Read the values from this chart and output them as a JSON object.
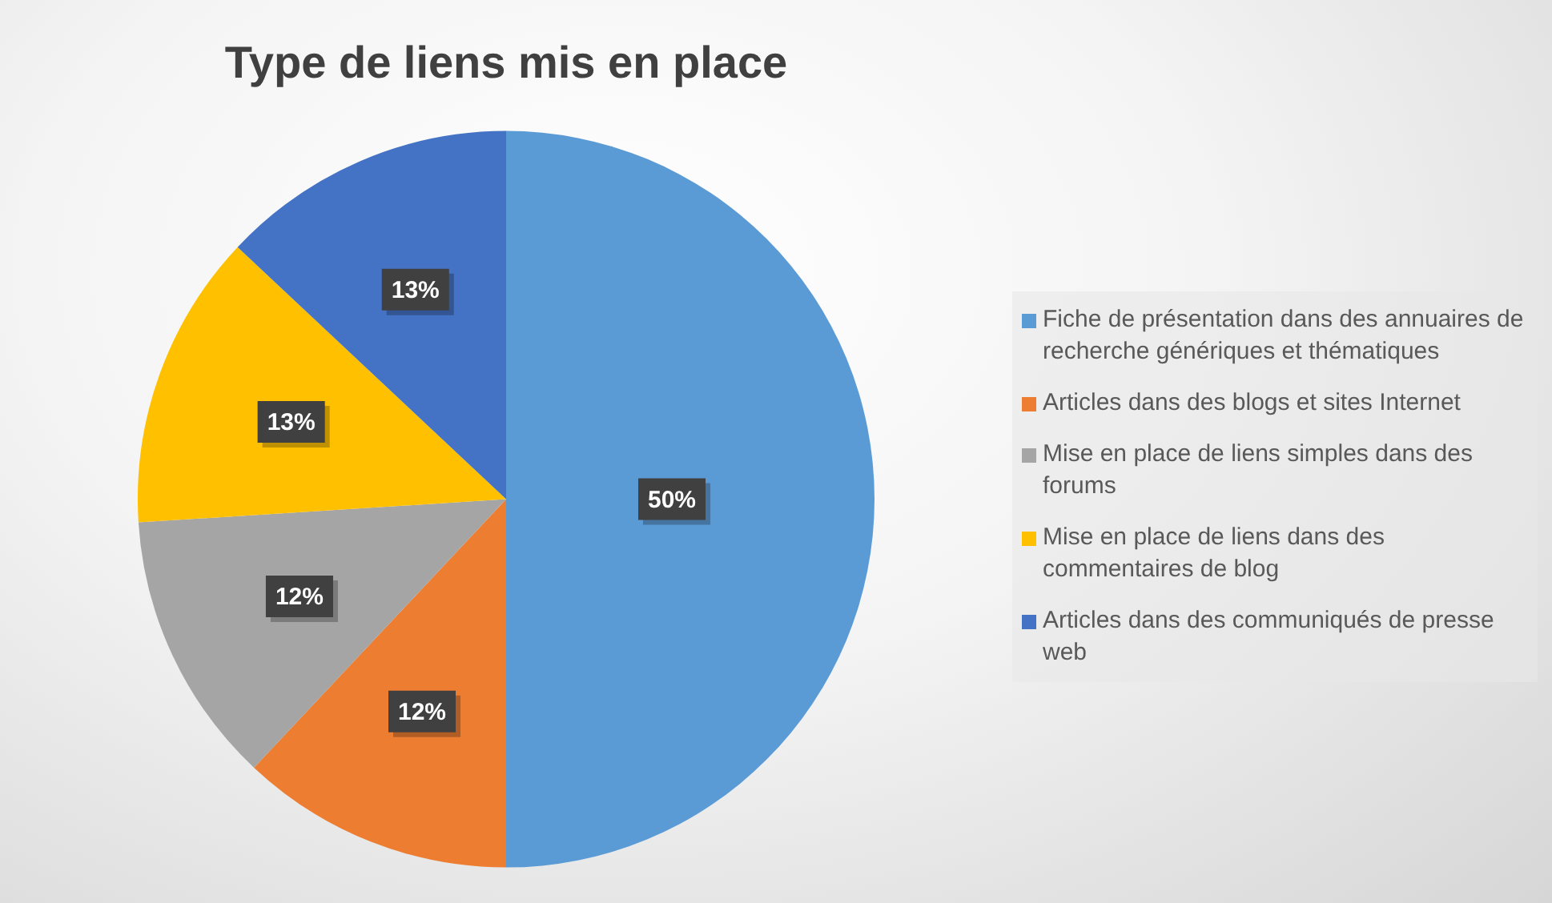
{
  "chart_data": {
    "type": "pie",
    "title": "Type de liens mis en place",
    "categories": [
      "Fiche de présentation dans des annuaires de recherche génériques et thématiques",
      "Articles dans des blogs et sites Internet",
      "Mise en place de liens simples dans des forums",
      "Mise en place de liens dans des commentaires de blog",
      "Articles dans des communiqués de presse web"
    ],
    "values": [
      50,
      12,
      12,
      13,
      13
    ],
    "colors": [
      "#5b9bd5",
      "#ed7d31",
      "#a5a5a5",
      "#ffc000",
      "#4472c4"
    ],
    "value_labels": [
      "50%",
      "12%",
      "12%",
      "13%",
      "13%"
    ],
    "legend": "right"
  }
}
